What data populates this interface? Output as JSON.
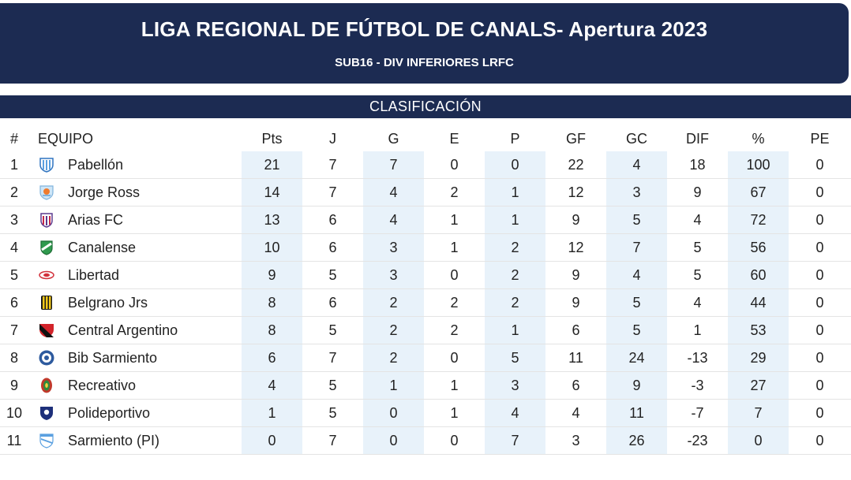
{
  "header": {
    "title": "LIGA REGIONAL DE FÚTBOL DE CANALS- Apertura 2023",
    "subtitle": "SUB16 - DIV INFERIORES LRFC"
  },
  "section_title": "CLASIFICACIÓN",
  "columns": [
    "#",
    "EQUIPO",
    "Pts",
    "J",
    "G",
    "E",
    "P",
    "GF",
    "GC",
    "DIF",
    "%",
    "PE"
  ],
  "colors": {
    "header_bg": "#1c2b52",
    "header_text": "#ffffff",
    "shaded_column_bg": "#e8f2fa"
  },
  "rows": [
    {
      "rank": "1",
      "team": "Pabellón",
      "crest": "pabellon-crest-icon",
      "pts": "21",
      "j": "7",
      "g": "7",
      "e": "0",
      "p": "0",
      "gf": "22",
      "gc": "4",
      "dif": "18",
      "pct": "100",
      "pe": "0"
    },
    {
      "rank": "2",
      "team": "Jorge Ross",
      "crest": "jorge-ross-crest-icon",
      "pts": "14",
      "j": "7",
      "g": "4",
      "e": "2",
      "p": "1",
      "gf": "12",
      "gc": "3",
      "dif": "9",
      "pct": "67",
      "pe": "0"
    },
    {
      "rank": "3",
      "team": "Arias FC",
      "crest": "arias-fc-crest-icon",
      "pts": "13",
      "j": "6",
      "g": "4",
      "e": "1",
      "p": "1",
      "gf": "9",
      "gc": "5",
      "dif": "4",
      "pct": "72",
      "pe": "0"
    },
    {
      "rank": "4",
      "team": "Canalense",
      "crest": "canalense-crest-icon",
      "pts": "10",
      "j": "6",
      "g": "3",
      "e": "1",
      "p": "2",
      "gf": "12",
      "gc": "7",
      "dif": "5",
      "pct": "56",
      "pe": "0"
    },
    {
      "rank": "5",
      "team": "Libertad",
      "crest": "libertad-crest-icon",
      "pts": "9",
      "j": "5",
      "g": "3",
      "e": "0",
      "p": "2",
      "gf": "9",
      "gc": "4",
      "dif": "5",
      "pct": "60",
      "pe": "0"
    },
    {
      "rank": "6",
      "team": "Belgrano Jrs",
      "crest": "belgrano-jrs-crest-icon",
      "pts": "8",
      "j": "6",
      "g": "2",
      "e": "2",
      "p": "2",
      "gf": "9",
      "gc": "5",
      "dif": "4",
      "pct": "44",
      "pe": "0"
    },
    {
      "rank": "7",
      "team": "Central Argentino",
      "crest": "central-argentino-crest-icon",
      "pts": "8",
      "j": "5",
      "g": "2",
      "e": "2",
      "p": "1",
      "gf": "6",
      "gc": "5",
      "dif": "1",
      "pct": "53",
      "pe": "0"
    },
    {
      "rank": "8",
      "team": "Bib Sarmiento",
      "crest": "bib-sarmiento-crest-icon",
      "pts": "6",
      "j": "7",
      "g": "2",
      "e": "0",
      "p": "5",
      "gf": "11",
      "gc": "24",
      "dif": "-13",
      "pct": "29",
      "pe": "0"
    },
    {
      "rank": "9",
      "team": "Recreativo",
      "crest": "recreativo-crest-icon",
      "pts": "4",
      "j": "5",
      "g": "1",
      "e": "1",
      "p": "3",
      "gf": "6",
      "gc": "9",
      "dif": "-3",
      "pct": "27",
      "pe": "0"
    },
    {
      "rank": "10",
      "team": "Polideportivo",
      "crest": "polideportivo-crest-icon",
      "pts": "1",
      "j": "5",
      "g": "0",
      "e": "1",
      "p": "4",
      "gf": "4",
      "gc": "11",
      "dif": "-7",
      "pct": "7",
      "pe": "0"
    },
    {
      "rank": "11",
      "team": "Sarmiento (PI)",
      "crest": "sarmiento-pi-crest-icon",
      "pts": "0",
      "j": "7",
      "g": "0",
      "e": "0",
      "p": "7",
      "gf": "3",
      "gc": "26",
      "dif": "-23",
      "pct": "0",
      "pe": "0"
    }
  ]
}
